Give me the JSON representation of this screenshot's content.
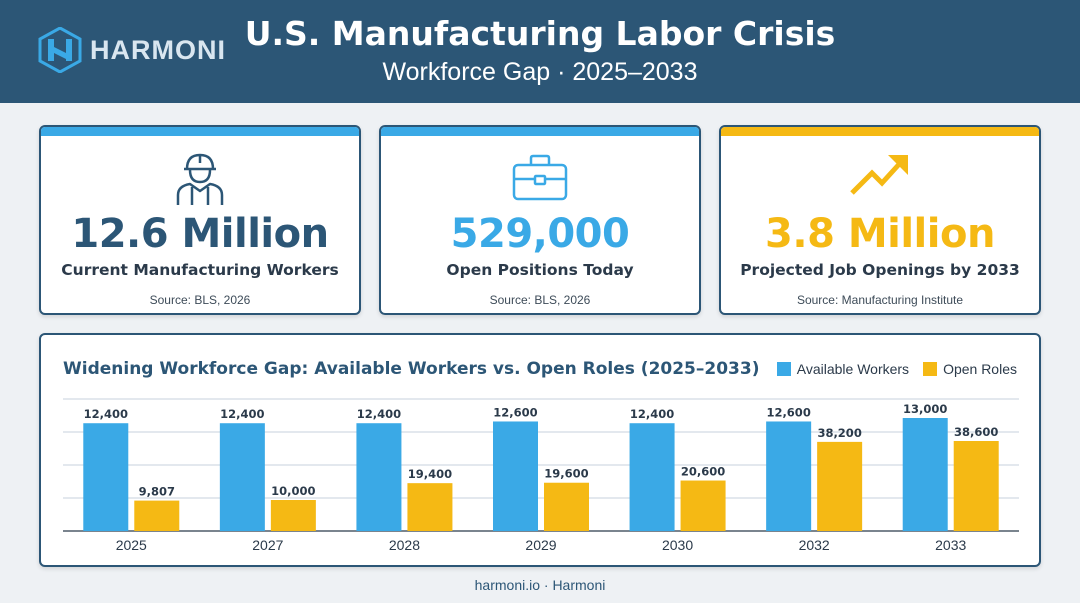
{
  "header": {
    "logo_text": "HARMONI",
    "title": "U.S. Manufacturing Labor Crisis",
    "subtitle": "Workforce Gap · 2025–2033"
  },
  "colors": {
    "header_bg": "#2c5676",
    "blue": "#3aa9e6",
    "yellow": "#f5b914",
    "navy": "#2c5676"
  },
  "cards": [
    {
      "icon": "worker-icon",
      "value": "12.6 Million",
      "label": "Current Manufacturing Workers",
      "source": "Source: BLS, 2026",
      "accent": "#3aa9e6",
      "value_color": "#2c5676"
    },
    {
      "icon": "briefcase-icon",
      "value": "529,000",
      "label": "Open Positions Today",
      "source": "Source: BLS, 2026",
      "accent": "#3aa9e6",
      "value_color": "#3aa9e6"
    },
    {
      "icon": "trend-up-icon",
      "value": "3.8 Million",
      "label": "Projected Job Openings by 2033",
      "source": "Source: Manufacturing Institute",
      "accent": "#f5b914",
      "value_color": "#f5b914"
    }
  ],
  "chart_data": {
    "type": "bar",
    "title": "Widening Workforce Gap: Available Workers vs. Open Roles (2025–2033)",
    "categories": [
      "2025",
      "2027",
      "2028",
      "2029",
      "2030",
      "2032",
      "2033"
    ],
    "series": [
      {
        "name": "Available Workers",
        "color": "#3aa9e6",
        "values": [
          12400,
          12400,
          12400,
          12600,
          12400,
          12600,
          13000
        ],
        "labels": [
          "12,400",
          "12,400",
          "12,400",
          "12,600",
          "12,400",
          "12,600",
          "13,000"
        ]
      },
      {
        "name": "Open Roles",
        "color": "#f5b914",
        "values": [
          9807,
          10000,
          19400,
          19600,
          20600,
          38200,
          38600
        ],
        "labels": [
          "9,807",
          "10,000",
          "19,400",
          "19,600",
          "20,600",
          "38,200",
          "38,600"
        ]
      }
    ],
    "grid": true,
    "legend": "top-right"
  },
  "footer": "harmoni.io · Harmoni"
}
